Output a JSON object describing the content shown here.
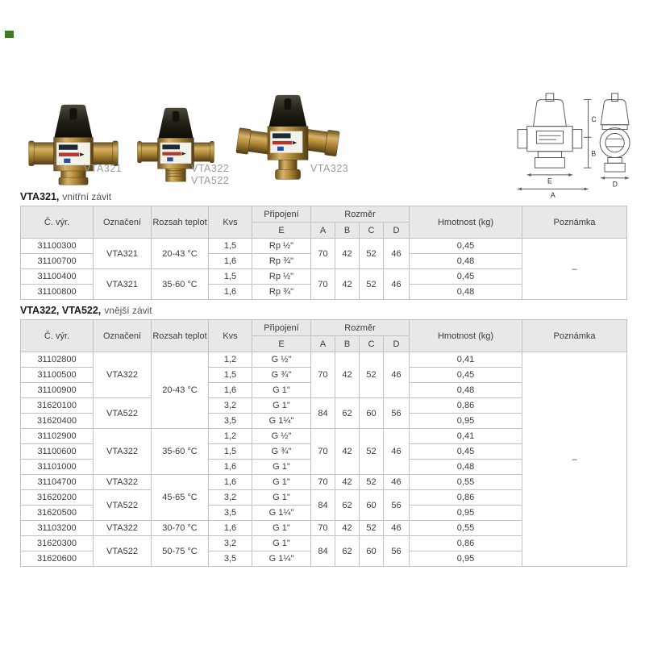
{
  "page": {
    "marker_color": "#3c7a28"
  },
  "colors": {
    "header_bg": "#e8e8e8",
    "cell_border": "#c2c2c2",
    "table_border": "#979797",
    "group_border": "#8f8f8f",
    "text": "#3b3b3b",
    "title_text": "#1a1a1a",
    "subtitle_text": "#555555",
    "label_gray": "#9c9c9c",
    "drawing_line": "#5a5a5a"
  },
  "products": [
    {
      "label": "VTA321"
    },
    {
      "line1": "VTA322",
      "line2": "VTA522"
    },
    {
      "label": "VTA323"
    }
  ],
  "drawing": {
    "labels": {
      "a": "A",
      "b": "B",
      "c": "C",
      "d": "D",
      "e": "E"
    }
  },
  "sections": [
    {
      "title_bold": "VTA321,",
      "title_rest": "vnitřní závit"
    },
    {
      "title_bold": "VTA322, VTA522,",
      "title_rest": "vnější závit"
    }
  ],
  "headers": {
    "c_vyr": "Č. výr.",
    "oznaceni": "Označení",
    "rozsah": "Rozsah teplot",
    "kvs": "Kvs",
    "pripojeni": "Připojení",
    "e": "E",
    "rozmer": "Rozměr",
    "a": "A",
    "b": "B",
    "c": "C",
    "d": "D",
    "hmotnost": "Hmotnost (kg)",
    "poznamka": "Poznámka"
  },
  "table1": {
    "rows": [
      {
        "c": [
          "31100300",
          {
            "t": "VTA321",
            "rs": 2
          },
          {
            "t": "20-43 °C",
            "rs": 2
          },
          "1,5",
          "Rp ½\"",
          {
            "t": "70",
            "rs": 2
          },
          {
            "t": "42",
            "rs": 2
          },
          {
            "t": "52",
            "rs": 2
          },
          {
            "t": "46",
            "rs": 2
          },
          "0,45",
          {
            "t": "–",
            "rs": 4
          }
        ]
      },
      {
        "c": [
          "31100700",
          "1,6",
          "Rp ¾\"",
          "0,48"
        ]
      },
      {
        "g": true,
        "c": [
          "31100400",
          {
            "t": "VTA321",
            "rs": 2
          },
          {
            "t": "35-60 °C",
            "rs": 2
          },
          "1,5",
          "Rp ½\"",
          {
            "t": "70",
            "rs": 2
          },
          {
            "t": "42",
            "rs": 2
          },
          {
            "t": "52",
            "rs": 2
          },
          {
            "t": "46",
            "rs": 2
          },
          "0,45"
        ]
      },
      {
        "c": [
          "31100800",
          "1,6",
          "Rp ¾\"",
          "0,48"
        ]
      }
    ]
  },
  "table2": {
    "rows": [
      {
        "c": [
          "31102800",
          {
            "t": "VTA322",
            "rs": 3
          },
          {
            "t": "20-43 °C",
            "rs": 5
          },
          "1,2",
          "G ½\"",
          {
            "t": "70",
            "rs": 3
          },
          {
            "t": "42",
            "rs": 3
          },
          {
            "t": "52",
            "rs": 3
          },
          {
            "t": "46",
            "rs": 3
          },
          "0,41",
          {
            "t": "–",
            "rs": 14
          }
        ]
      },
      {
        "c": [
          "31100500",
          "1,5",
          "G ¾\"",
          "0,45"
        ]
      },
      {
        "c": [
          "31100900",
          "1,6",
          "G 1\"",
          "0,48"
        ]
      },
      {
        "c": [
          "31620100",
          {
            "t": "VTA522",
            "rs": 2
          },
          "3,2",
          "G 1\"",
          {
            "t": "84",
            "rs": 2
          },
          {
            "t": "62",
            "rs": 2
          },
          {
            "t": "60",
            "rs": 2
          },
          {
            "t": "56",
            "rs": 2
          },
          "0,86"
        ]
      },
      {
        "c": [
          "31620400",
          "3,5",
          "G 1¼\"",
          "0,95"
        ]
      },
      {
        "g": true,
        "c": [
          "31102900",
          {
            "t": "VTA322",
            "rs": 3
          },
          {
            "t": "35-60 °C",
            "rs": 3
          },
          "1,2",
          "G ½\"",
          {
            "t": "70",
            "rs": 3
          },
          {
            "t": "42",
            "rs": 3
          },
          {
            "t": "52",
            "rs": 3
          },
          {
            "t": "46",
            "rs": 3
          },
          "0,41"
        ]
      },
      {
        "c": [
          "31100600",
          "1,5",
          "G ¾\"",
          "0,45"
        ]
      },
      {
        "c": [
          "31101000",
          "1,6",
          "G 1\"",
          "0,48"
        ]
      },
      {
        "g": true,
        "c": [
          "31104700",
          "VTA322",
          {
            "t": "45-65 °C",
            "rs": 3
          },
          "1,6",
          "G 1\"",
          "70",
          "42",
          "52",
          "46",
          "0,55"
        ]
      },
      {
        "c": [
          "31620200",
          {
            "t": "VTA522",
            "rs": 2
          },
          "3,2",
          "G 1\"",
          {
            "t": "84",
            "rs": 2
          },
          {
            "t": "62",
            "rs": 2
          },
          {
            "t": "60",
            "rs": 2
          },
          {
            "t": "56",
            "rs": 2
          },
          "0,86"
        ]
      },
      {
        "c": [
          "31620500",
          "3,5",
          "G 1¼\"",
          "0,95"
        ]
      },
      {
        "g": true,
        "c": [
          "31103200",
          "VTA322",
          "30-70 °C",
          "1,6",
          "G 1\"",
          "70",
          "42",
          "52",
          "46",
          "0,55"
        ]
      },
      {
        "g": true,
        "c": [
          "31620300",
          {
            "t": "VTA522",
            "rs": 2
          },
          {
            "t": "50-75 °C",
            "rs": 2
          },
          "3,2",
          "G 1\"",
          {
            "t": "84",
            "rs": 2
          },
          {
            "t": "62",
            "rs": 2
          },
          {
            "t": "60",
            "rs": 2
          },
          {
            "t": "56",
            "rs": 2
          },
          "0,86"
        ]
      },
      {
        "c": [
          "31620600",
          "3,5",
          "G 1¼\"",
          "0,95"
        ]
      }
    ]
  }
}
